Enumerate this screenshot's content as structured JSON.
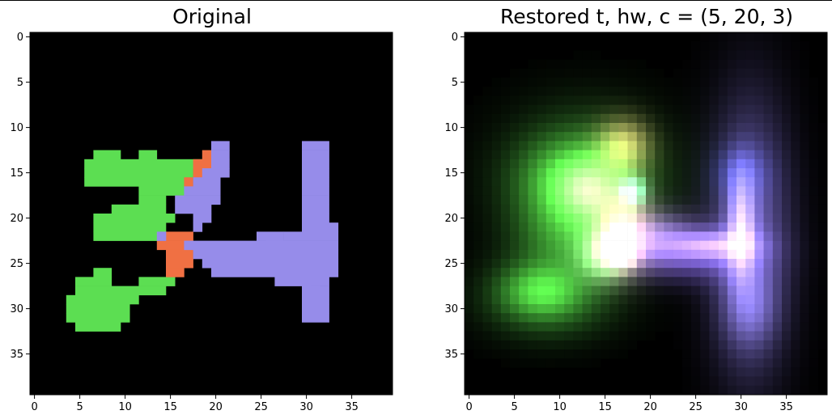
{
  "chart_data": [
    {
      "type": "heatmap",
      "title": "Original",
      "grid_size": 40,
      "xticks": [
        0,
        5,
        10,
        15,
        20,
        25,
        30,
        35
      ],
      "yticks": [
        0,
        5,
        10,
        15,
        20,
        25,
        30,
        35
      ],
      "xlim": [
        -0.5,
        39.5
      ],
      "ylim": [
        39.5,
        -0.5
      ],
      "background": "#000000",
      "regions": [
        {
          "color": "#5cde52",
          "cells": [
            [
              7,
              13,
              9,
              13
            ],
            [
              12,
              13,
              13,
              13
            ],
            [
              6,
              14,
              19,
              14
            ],
            [
              6,
              15,
              17,
              15
            ],
            [
              6,
              16,
              16,
              16
            ],
            [
              12,
              17,
              16,
              17
            ],
            [
              12,
              18,
              14,
              18
            ],
            [
              9,
              19,
              14,
              19
            ],
            [
              7,
              20,
              15,
              20
            ],
            [
              7,
              21,
              14,
              21
            ],
            [
              7,
              22,
              13,
              22
            ],
            [
              17,
              23,
              17,
              23
            ],
            [
              7,
              26,
              8,
              26
            ],
            [
              5,
              27,
              8,
              27
            ],
            [
              12,
              27,
              15,
              27
            ],
            [
              5,
              28,
              14,
              28
            ],
            [
              4,
              29,
              11,
              29
            ],
            [
              4,
              30,
              10,
              30
            ],
            [
              4,
              31,
              10,
              31
            ],
            [
              5,
              32,
              9,
              32
            ]
          ]
        },
        {
          "color": "#f07043",
          "cells": [
            [
              19,
              13,
              19,
              13
            ],
            [
              18,
              14,
              19,
              14
            ],
            [
              18,
              15,
              18,
              15
            ],
            [
              17,
              16,
              17,
              16
            ],
            [
              15,
              22,
              17,
              22
            ],
            [
              14,
              23,
              16,
              23
            ],
            [
              15,
              24,
              17,
              24
            ],
            [
              15,
              25,
              17,
              25
            ],
            [
              15,
              26,
              16,
              26
            ]
          ]
        },
        {
          "color": "#968cea",
          "cells": [
            [
              20,
              12,
              21,
              12
            ],
            [
              20,
              13,
              21,
              13
            ],
            [
              20,
              14,
              21,
              14
            ],
            [
              19,
              15,
              21,
              15
            ],
            [
              18,
              16,
              20,
              16
            ],
            [
              17,
              17,
              20,
              17
            ],
            [
              16,
              18,
              20,
              18
            ],
            [
              16,
              19,
              19,
              19
            ],
            [
              18,
              20,
              19,
              20
            ],
            [
              18,
              21,
              18,
              21
            ],
            [
              14,
              22,
              14,
              22
            ],
            [
              25,
              22,
              27,
              22
            ],
            [
              17,
              23,
              27,
              23
            ],
            [
              18,
              24,
              33,
              24
            ],
            [
              19,
              25,
              33,
              25
            ],
            [
              20,
              26,
              31,
              26
            ],
            [
              27,
              27,
              30,
              27
            ],
            [
              30,
              28,
              31,
              28
            ],
            [
              30,
              29,
              32,
              29
            ],
            [
              30,
              30,
              32,
              30
            ],
            [
              30,
              31,
              32,
              31
            ],
            [
              30,
              12,
              32,
              12
            ],
            [
              30,
              13,
              32,
              13
            ],
            [
              30,
              14,
              32,
              14
            ],
            [
              30,
              15,
              32,
              15
            ],
            [
              30,
              16,
              32,
              16
            ],
            [
              30,
              17,
              32,
              17
            ],
            [
              30,
              18,
              32,
              18
            ],
            [
              30,
              19,
              32,
              19
            ],
            [
              30,
              20,
              32,
              20
            ],
            [
              30,
              21,
              33,
              21
            ],
            [
              28,
              22,
              33,
              22
            ],
            [
              26,
              23,
              33,
              23
            ],
            [
              30,
              26,
              33,
              26
            ],
            [
              30,
              27,
              32,
              27
            ],
            [
              30,
              28,
              32,
              28
            ]
          ]
        }
      ]
    },
    {
      "type": "heatmap",
      "title": "Restored t, hw, c = (5, 20, 3)",
      "grid_size": 40,
      "xticks": [
        0,
        5,
        10,
        15,
        20,
        25,
        30,
        35
      ],
      "yticks": [
        0,
        5,
        10,
        15,
        20,
        25,
        30,
        35
      ],
      "xlim": [
        -0.5,
        39.5
      ],
      "ylim": [
        39.5,
        -0.5
      ],
      "background": "#000000",
      "blobs": [
        {
          "color": "#2a6a22",
          "cx": 13,
          "cy": 15,
          "rx": 6,
          "ry": 5
        },
        {
          "color": "#46b83a",
          "cx": 12,
          "cy": 16,
          "rx": 4,
          "ry": 3
        },
        {
          "color": "#7af06a",
          "cx": 13,
          "cy": 17,
          "rx": 2,
          "ry": 2
        },
        {
          "color": "#2f7a26",
          "cx": 11,
          "cy": 22,
          "rx": 4,
          "ry": 3
        },
        {
          "color": "#266420",
          "cx": 9,
          "cy": 29,
          "rx": 5,
          "ry": 3
        },
        {
          "color": "#3a9630",
          "cx": 8,
          "cy": 28,
          "rx": 3,
          "ry": 2
        },
        {
          "color": "#a0d890",
          "cx": 15,
          "cy": 24,
          "rx": 2,
          "ry": 2
        },
        {
          "color": "#e08090",
          "cx": 17,
          "cy": 21,
          "rx": 2,
          "ry": 3
        },
        {
          "color": "#d88060",
          "cx": 17,
          "cy": 24,
          "rx": 1,
          "ry": 1
        },
        {
          "color": "#6a5090",
          "cx": 21,
          "cy": 22,
          "rx": 3,
          "ry": 2
        },
        {
          "color": "#5a44a0",
          "cx": 24,
          "cy": 24,
          "rx": 5,
          "ry": 2
        },
        {
          "color": "#7a66d8",
          "cx": 27,
          "cy": 23,
          "rx": 3,
          "ry": 1
        },
        {
          "color": "#6f62b8",
          "cx": 31,
          "cy": 22,
          "rx": 3,
          "ry": 10
        },
        {
          "color": "#9a88e8",
          "cx": 30,
          "cy": 21,
          "rx": 1,
          "ry": 4
        },
        {
          "color": "#141e5a",
          "cx": 30,
          "cy": 15,
          "rx": 2,
          "ry": 2
        },
        {
          "color": "#3f3b6a",
          "cx": 31,
          "cy": 30,
          "rx": 2,
          "ry": 3
        },
        {
          "color": "#62d0c0",
          "cx": 18,
          "cy": 17,
          "rx": 1,
          "ry": 1
        },
        {
          "color": "#c09060",
          "cx": 17,
          "cy": 12,
          "rx": 2,
          "ry": 2
        }
      ]
    }
  ]
}
